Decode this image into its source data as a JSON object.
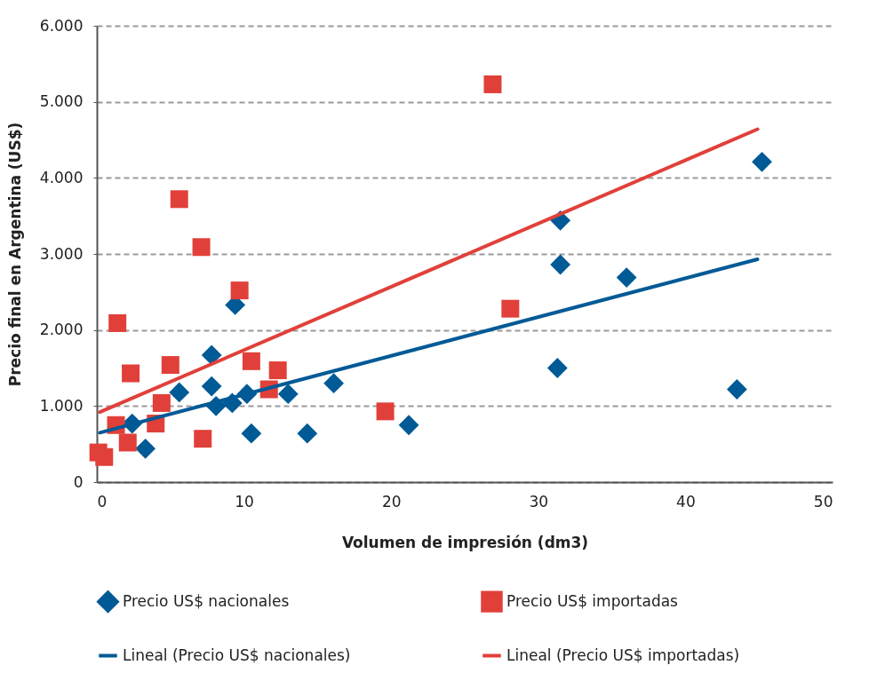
{
  "chart_data": {
    "type": "scatter",
    "xlabel": "Volumen de impresión (dm3)",
    "ylabel": "Precio final en Argentina (US$)",
    "xlim": [
      0,
      50
    ],
    "xticks": [
      0,
      10,
      20,
      30,
      40,
      50
    ],
    "ylim": [
      0,
      6000
    ],
    "yticks": [
      0,
      {
        "value": 1000,
        "label": "1.000"
      },
      {
        "value": 2000,
        "label": "2.000"
      },
      {
        "value": 3000,
        "label": "3.000"
      },
      {
        "value": 4000,
        "label": "4.000"
      },
      {
        "value": 5000,
        "label": "5.000"
      },
      {
        "value": 6000,
        "label": "6.000"
      }
    ],
    "grid": "y",
    "legend": "bottom",
    "series": [
      {
        "name": "Precio US$ nacionales",
        "marker": "diamond",
        "color": "#005a96",
        "x": [
          2.4,
          3.3,
          5.6,
          7.8,
          7.8,
          8.1,
          9.2,
          9.4,
          10.2,
          10.5,
          13.0,
          14.3,
          16.1,
          21.2,
          31.5,
          31.5,
          31.3,
          36.0,
          43.5,
          45.2
        ],
        "values": [
          770,
          440,
          1180,
          1670,
          1260,
          1000,
          1040,
          2330,
          1160,
          640,
          1160,
          640,
          1300,
          750,
          3440,
          2860,
          1500,
          2690,
          1220,
          4210
        ]
      },
      {
        "name": "Precio US$ importadas",
        "marker": "square",
        "color": "#e1403a",
        "x": [
          0.1,
          0.5,
          1.3,
          1.4,
          2.1,
          2.3,
          4.0,
          4.4,
          5.0,
          5.6,
          7.1,
          7.2,
          9.7,
          10.5,
          11.7,
          12.3,
          19.6,
          26.9,
          28.1
        ],
        "values": [
          390,
          330,
          750,
          2090,
          520,
          1430,
          770,
          1040,
          1540,
          3720,
          3090,
          570,
          2520,
          1590,
          1220,
          1470,
          930,
          5230,
          2280
        ]
      },
      {
        "name": "Lineal (Precio US$ nacionales)",
        "type": "line",
        "line_style": "solid",
        "color": "#005a96",
        "x": [
          0.2,
          44.9
        ],
        "values": [
          650,
          2930
        ]
      },
      {
        "name": "Lineal (Precio US$ importadas)",
        "type": "line",
        "line_style": "solid",
        "color": "#e1403a",
        "x": [
          0.2,
          44.9
        ],
        "values": [
          920,
          4640
        ]
      }
    ]
  }
}
